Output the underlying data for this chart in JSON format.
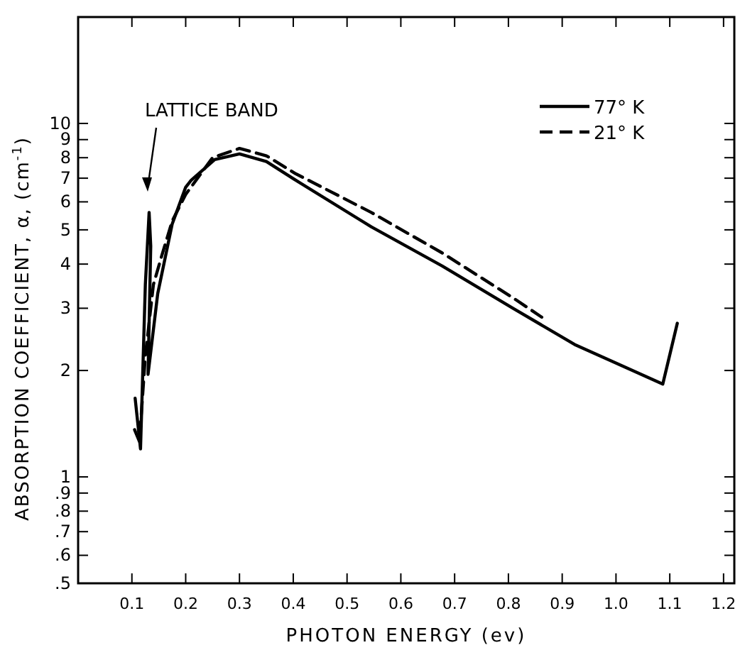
{
  "chart_data": {
    "type": "line",
    "xlabel": "PHOTON ENERGY  (ev)",
    "ylabel": "ABSORPTION COEFFICIENT, α, (cm$^{-1}$)",
    "log": "y",
    "grid": false,
    "legend": "top right",
    "marker": "none",
    "xlim": [
      0,
      1.22
    ],
    "ylim": [
      0.5,
      20
    ],
    "xticks": [
      0.1,
      0.2,
      0.3,
      0.4,
      0.5,
      0.6,
      0.7,
      0.8,
      0.9,
      {
        "value": 1,
        "label": "1.0"
      },
      1.1,
      1.2
    ],
    "yticks": [
      {
        "value": 0.5,
        "label": ".5"
      },
      {
        "value": 0.6,
        "label": ".6"
      },
      {
        "value": 0.7,
        "label": ".7"
      },
      {
        "value": 0.8,
        "label": ".8"
      },
      {
        "value": 0.9,
        "label": ".9"
      },
      1,
      2,
      3,
      4,
      5,
      6,
      7,
      8,
      9,
      10
    ],
    "series": [
      {
        "name": "77° K",
        "color": "#000000",
        "line_style": "solid",
        "x": [
          0.106,
          0.116,
          0.125,
          0.132,
          0.135,
          0.13,
          0.148,
          0.175,
          0.2,
          0.21,
          0.254,
          0.3,
          0.35,
          0.405,
          0.545,
          0.677,
          0.81,
          0.923,
          1.087,
          1.114
        ],
        "values": [
          1.67,
          1.2,
          3.5,
          5.6,
          4.5,
          1.95,
          3.3,
          5.2,
          6.6,
          6.9,
          7.9,
          8.2,
          7.8,
          6.9,
          5.1,
          3.95,
          2.99,
          2.37,
          1.83,
          2.72
        ]
      },
      {
        "name": "21° K",
        "color": "#000000",
        "line_style": "dashed",
        "x": [
          0.105,
          0.114,
          0.125,
          0.14,
          0.155,
          0.175,
          0.2,
          0.25,
          0.3,
          0.35,
          0.405,
          0.545,
          0.677,
          0.81,
          0.862
        ],
        "values": [
          1.36,
          1.26,
          2.2,
          3.5,
          4.2,
          5.3,
          6.3,
          8.0,
          8.5,
          8.1,
          7.2,
          5.6,
          4.3,
          3.2,
          2.83
        ]
      }
    ],
    "annotations": [
      "LATTICE BAND"
    ]
  }
}
